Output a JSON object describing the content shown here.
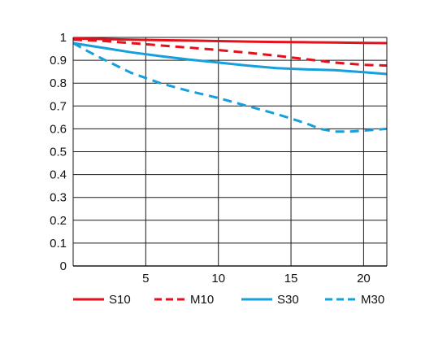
{
  "chart_data": {
    "type": "line",
    "title": "",
    "xlabel": "",
    "ylabel": "",
    "xlim": [
      0,
      21.6
    ],
    "ylim": [
      0,
      1
    ],
    "x_ticks": [
      5,
      10,
      15,
      20
    ],
    "x_tick_labels": [
      "5",
      "10",
      "15",
      "20"
    ],
    "y_ticks": [
      0,
      0.1,
      0.2,
      0.3,
      0.4,
      0.5,
      0.6,
      0.7,
      0.8,
      0.9,
      1
    ],
    "y_tick_labels": [
      "0",
      "0.1",
      "0.2",
      "0.3",
      "0.4",
      "0.5",
      "0.6",
      "0.7",
      "0.8",
      "0.9",
      "1"
    ],
    "grid": true,
    "legend_position": "bottom",
    "series": [
      {
        "name": "S10",
        "color": "#e3111c",
        "dashed": false,
        "x": [
          0,
          2,
          4,
          6,
          8,
          10,
          12,
          14,
          16,
          18,
          20,
          21.6
        ],
        "y": [
          0.995,
          0.993,
          0.99,
          0.988,
          0.986,
          0.984,
          0.982,
          0.98,
          0.979,
          0.978,
          0.976,
          0.975
        ]
      },
      {
        "name": "M10",
        "color": "#e3111c",
        "dashed": true,
        "x": [
          0,
          2,
          4,
          6,
          8,
          10,
          12,
          14,
          16,
          18,
          20,
          21.6
        ],
        "y": [
          0.99,
          0.985,
          0.975,
          0.965,
          0.955,
          0.945,
          0.933,
          0.92,
          0.905,
          0.89,
          0.88,
          0.877
        ]
      },
      {
        "name": "S30",
        "color": "#169fdd",
        "dashed": false,
        "x": [
          0,
          2,
          4,
          6,
          8,
          10,
          12,
          14,
          16,
          18,
          20,
          21.6
        ],
        "y": [
          0.975,
          0.955,
          0.935,
          0.918,
          0.903,
          0.89,
          0.877,
          0.866,
          0.86,
          0.857,
          0.848,
          0.84
        ]
      },
      {
        "name": "M30",
        "color": "#169fdd",
        "dashed": true,
        "x": [
          0,
          1,
          2,
          4,
          6,
          8,
          10,
          12,
          14,
          16,
          17,
          18,
          19,
          20,
          21.6
        ],
        "y": [
          0.975,
          0.94,
          0.907,
          0.845,
          0.8,
          0.765,
          0.735,
          0.7,
          0.665,
          0.625,
          0.6,
          0.588,
          0.588,
          0.592,
          0.6
        ]
      }
    ]
  }
}
